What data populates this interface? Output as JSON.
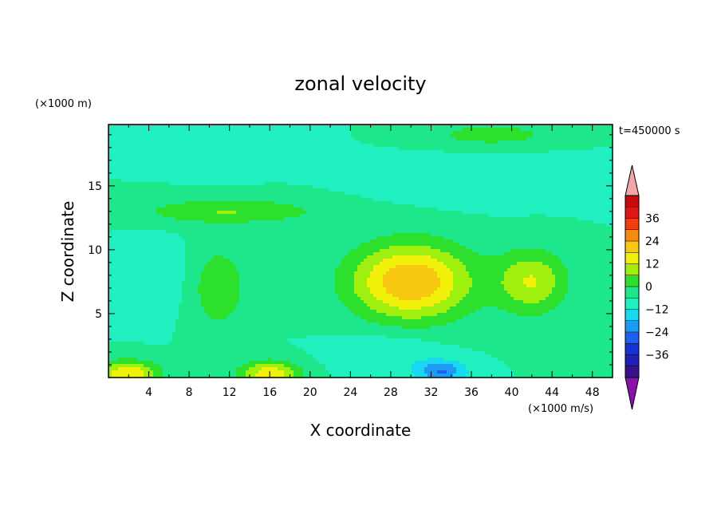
{
  "chart_data": {
    "type": "heatmap",
    "title": "zonal velocity",
    "xlabel": "X coordinate",
    "ylabel": "Z coordinate",
    "x_unit": "(×1000 m/s)",
    "y_unit": "(×1000 m)",
    "time_label": "t=450000 s",
    "xlim": [
      0,
      50
    ],
    "ylim": [
      0,
      19.8
    ],
    "x_ticks": [
      4,
      8,
      12,
      16,
      20,
      24,
      28,
      32,
      36,
      40,
      44,
      48
    ],
    "x_tick_labels": [
      "4",
      "8",
      "12",
      "16",
      "20",
      "24",
      "28",
      "32",
      "36",
      "40",
      "44",
      "48"
    ],
    "y_ticks": [
      5,
      10,
      15
    ],
    "y_tick_labels": [
      "5",
      "10",
      "15"
    ],
    "colorbar": {
      "levels": [
        -42,
        -36,
        -30,
        -24,
        -18,
        -12,
        -6,
        0,
        6,
        12,
        18,
        24,
        30,
        36,
        42
      ],
      "colors": [
        "#3a0f8f",
        "#2020b8",
        "#1730d8",
        "#1f5ff0",
        "#1e9af5",
        "#1ad8f0",
        "#20f0c0",
        "#1ee68a",
        "#2ee02e",
        "#9ff00f",
        "#f0f00a",
        "#f8c810",
        "#f88a10",
        "#f04010",
        "#e01515",
        "#c80a0a"
      ],
      "under_color": "#8a12a8",
      "over_color": "#f4a6a6",
      "tick_values": [
        36,
        24,
        12,
        0,
        -12,
        -24,
        -36
      ],
      "tick_labels": [
        "36",
        "24",
        "12",
        "0",
        "−12",
        "−24",
        "−36"
      ]
    },
    "features": [
      {
        "x": 30,
        "z": 7.5,
        "sx": 6,
        "sz": 3,
        "value": 24
      },
      {
        "x": 42,
        "z": 7.5,
        "sx": 3.5,
        "sz": 2.5,
        "value": 12
      },
      {
        "x": 11,
        "z": 7,
        "sx": 2.5,
        "sz": 3,
        "value": 6
      },
      {
        "x": 33,
        "z": 0.5,
        "sx": 2.5,
        "sz": 0.8,
        "value": -24
      },
      {
        "x": 28,
        "z": 2,
        "sx": 5,
        "sz": 1.5,
        "value": -12
      },
      {
        "x": 4,
        "z": 8,
        "sx": 3,
        "sz": 2.5,
        "value": -12
      },
      {
        "x": 11,
        "z": 18,
        "sx": 5,
        "sz": 1.5,
        "value": -12
      },
      {
        "x": 2,
        "z": 0.3,
        "sx": 3,
        "sz": 1,
        "value": 18
      },
      {
        "x": 16,
        "z": 0.3,
        "sx": 3,
        "sz": 1,
        "value": 16
      },
      {
        "x": 38,
        "z": 19,
        "sx": 5,
        "sz": 0.7,
        "value": 6
      },
      {
        "x": 12,
        "z": 13,
        "sx": 9,
        "sz": 1,
        "value": 6
      },
      {
        "x": 37,
        "z": 15,
        "sx": 9,
        "sz": 1.5,
        "value": -10
      }
    ],
    "background_value": -6
  }
}
